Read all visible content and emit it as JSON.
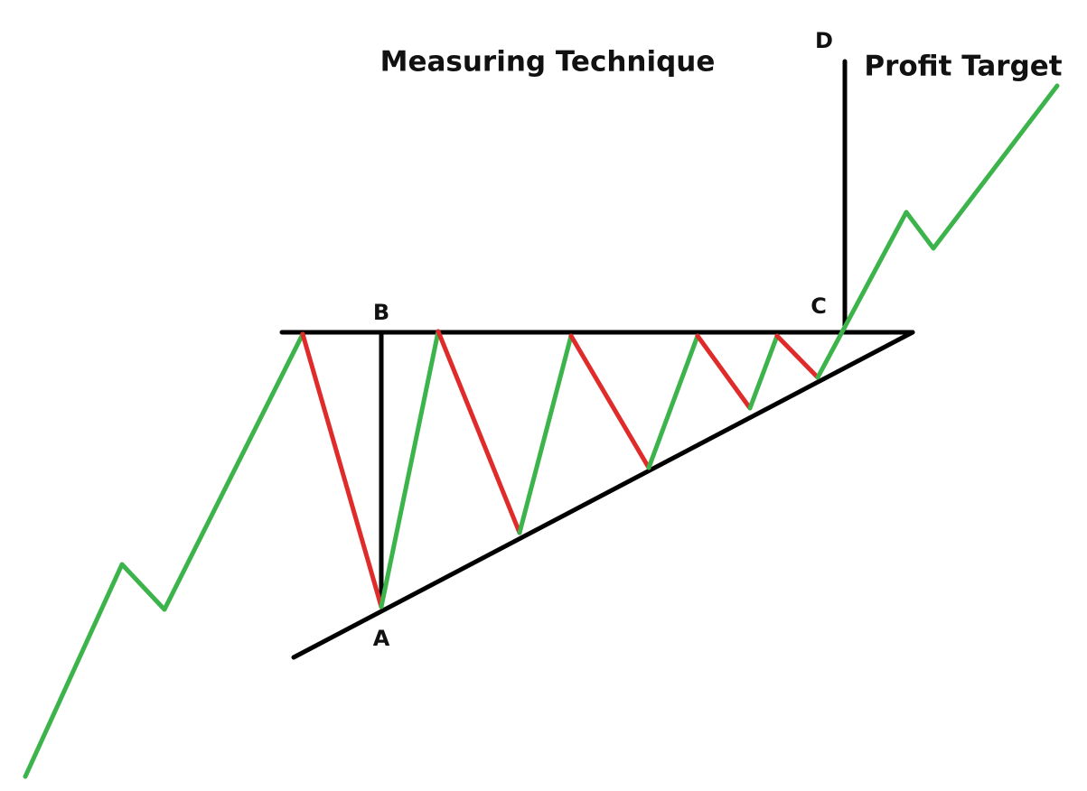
{
  "title": "Measuring Technique",
  "target_label": "Profit Target",
  "points": {
    "a": "A",
    "b": "B",
    "c": "C",
    "d": "D"
  }
}
